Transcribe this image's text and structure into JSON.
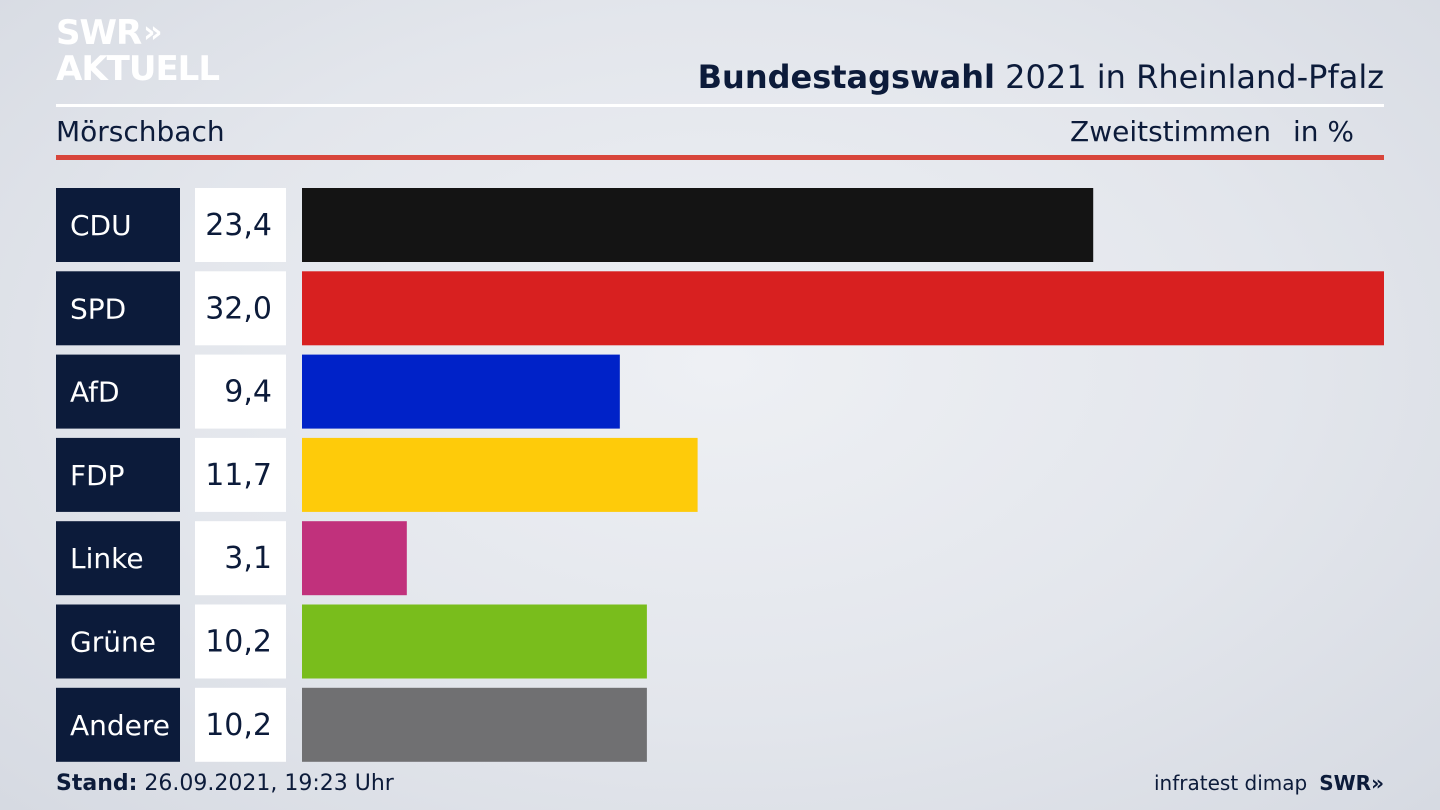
{
  "logo": {
    "line1": "SWR",
    "chevrons": "»",
    "line2": "AKTUELL"
  },
  "header": {
    "title_bold": "Bundestagswahl",
    "title_rest": "2021 in Rheinland-Pfalz",
    "region": "Mörschbach",
    "metric": "Zweitstimmen",
    "unit": "in %"
  },
  "chart_data": {
    "type": "bar",
    "orientation": "horizontal",
    "categories": [
      "CDU",
      "SPD",
      "AfD",
      "FDP",
      "Linke",
      "Grüne",
      "Andere"
    ],
    "values": [
      23.4,
      32.0,
      9.4,
      11.7,
      3.1,
      10.2,
      10.2
    ],
    "value_labels": [
      "23,4",
      "32,0",
      "9,4",
      "11,7",
      "3,1",
      "10,2",
      "10,2"
    ],
    "colors": [
      "#141414",
      "#d82020",
      "#0022c8",
      "#fecb0a",
      "#c1317c",
      "#79bd1c",
      "#707072"
    ],
    "xlim": [
      0,
      32.0
    ],
    "grid": false,
    "legend": "none"
  },
  "footer": {
    "stand_label": "Stand:",
    "stand_value": "26.09.2021, 19:23 Uhr",
    "source": "infratest dimap",
    "brand": "SWR»"
  },
  "colors": {
    "label_box": "#0c1b3a",
    "value_box": "#ffffff",
    "accent_red": "#d8453b",
    "text": "#0c1b3a"
  }
}
